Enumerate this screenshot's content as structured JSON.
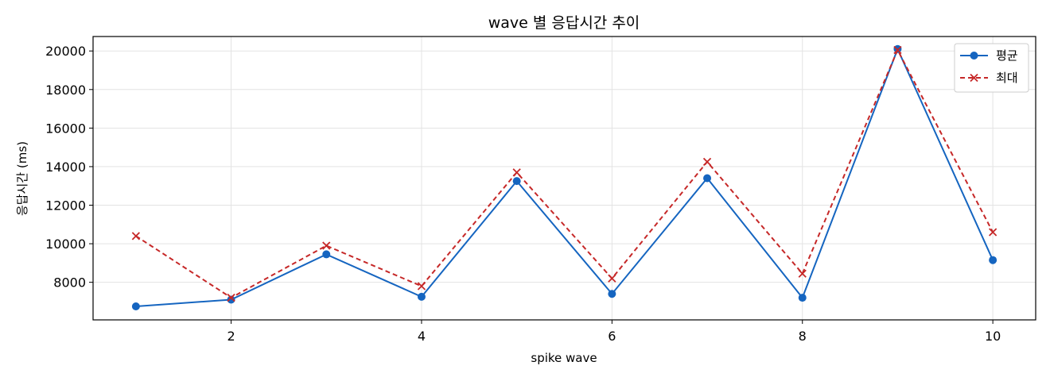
{
  "chart_data": {
    "type": "line",
    "title": "wave 별 응답시간 추이",
    "xlabel": "spike wave",
    "ylabel": "응답시간 (ms)",
    "xlim": [
      0.55,
      10.45
    ],
    "ylim": [
      6050,
      20750
    ],
    "xticks": [
      2,
      4,
      6,
      8,
      10
    ],
    "yticks": [
      8000,
      10000,
      12000,
      14000,
      16000,
      18000,
      20000
    ],
    "grid": true,
    "legend_position": "top-right",
    "x": [
      1,
      2,
      3,
      4,
      5,
      6,
      7,
      8,
      9,
      10
    ],
    "series": [
      {
        "name": "평균",
        "color": "#1565c0",
        "style": "solid",
        "marker": "circle",
        "values": [
          6750,
          7100,
          9450,
          7250,
          13250,
          7400,
          13400,
          7200,
          20100,
          9150
        ]
      },
      {
        "name": "최대",
        "color": "#c62828",
        "style": "dashed",
        "marker": "x",
        "values": [
          10400,
          7200,
          9900,
          7800,
          13700,
          8200,
          14250,
          8450,
          20050,
          10600
        ]
      }
    ]
  }
}
